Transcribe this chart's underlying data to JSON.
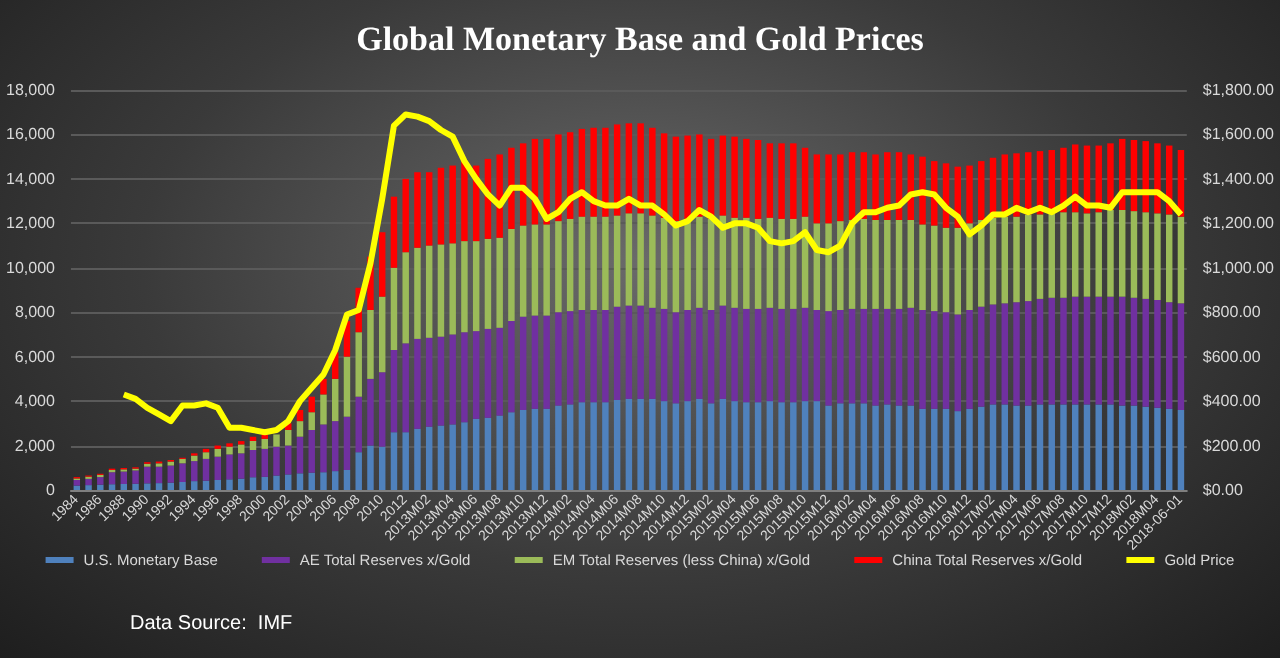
{
  "chart_data": {
    "type": "bar",
    "title": "Global Monetary Base and Gold Prices",
    "categories": [
      "1984",
      null,
      "1986",
      null,
      "1988",
      null,
      "1990",
      null,
      "1992",
      null,
      "1994",
      null,
      "1996",
      null,
      "1998",
      null,
      "2000",
      null,
      "2002",
      null,
      "2004",
      null,
      "2006",
      null,
      "2008",
      null,
      "2010",
      null,
      "2012",
      null,
      "2013M02",
      null,
      "2013M04",
      null,
      "2013M06",
      null,
      "2013M08",
      null,
      "2013M10",
      null,
      "2013M12",
      null,
      "2014M02",
      null,
      "2014M04",
      null,
      "2014M06",
      null,
      "2014M08",
      null,
      "2014M10",
      null,
      "2014M12",
      null,
      "2015M02",
      null,
      "2015M04",
      null,
      "2015M06",
      null,
      "2015M08",
      null,
      "2015M10",
      null,
      "2015M12",
      null,
      "2016M02",
      null,
      "2016M04",
      null,
      "2016M06",
      null,
      "2016M08",
      null,
      "2016M10",
      null,
      "2016M12",
      null,
      "2017M02",
      null,
      "2017M04",
      null,
      "2017M06",
      null,
      "2017M08",
      null,
      "2017M10",
      null,
      "2017M12",
      null,
      "2018M02",
      null,
      "2018M04",
      null,
      "2018-06-01"
    ],
    "stacked": true,
    "series": [
      {
        "name": "U.S. Monetary Base",
        "color": "#4f81bd",
        "values": [
          200,
          220,
          240,
          260,
          270,
          280,
          300,
          310,
          330,
          360,
          400,
          420,
          450,
          480,
          510,
          570,
          590,
          650,
          700,
          750,
          780,
          800,
          850,
          900,
          1700,
          2000,
          1950,
          2600,
          2600,
          2750,
          2850,
          2900,
          2950,
          3050,
          3200,
          3250,
          3350,
          3500,
          3600,
          3650,
          3650,
          3800,
          3850,
          3950,
          3950,
          3950,
          4050,
          4100,
          4100,
          4100,
          4000,
          3900,
          4000,
          4100,
          3900,
          4100,
          4000,
          3950,
          3950,
          4000,
          3950,
          3950,
          4000,
          4000,
          3800,
          3900,
          3900,
          3900,
          3800,
          3850,
          3800,
          3800,
          3650,
          3650,
          3650,
          3550,
          3650,
          3750,
          3850,
          3850,
          3800,
          3800,
          3850,
          3850,
          3850,
          3850,
          3850,
          3850,
          3850,
          3800,
          3800,
          3750,
          3700,
          3650,
          3600
        ]
      },
      {
        "name": "AE Total Reserves x/Gold",
        "color": "#7030a0",
        "values": [
          250,
          280,
          340,
          540,
          560,
          600,
          750,
          740,
          770,
          840,
          900,
          980,
          1050,
          1120,
          1140,
          1230,
          1260,
          1300,
          1300,
          1650,
          1920,
          2150,
          2250,
          2400,
          2500,
          3000,
          3350,
          3700,
          4000,
          4050,
          4000,
          4000,
          4050,
          4050,
          3950,
          4000,
          3950,
          4100,
          4200,
          4200,
          4200,
          4200,
          4200,
          4150,
          4150,
          4150,
          4200,
          4200,
          4200,
          4100,
          4150,
          4100,
          4100,
          4100,
          4200,
          4200,
          4200,
          4200,
          4200,
          4200,
          4200,
          4200,
          4200,
          4100,
          4250,
          4200,
          4250,
          4250,
          4350,
          4300,
          4350,
          4400,
          4450,
          4400,
          4350,
          4350,
          4450,
          4500,
          4500,
          4550,
          4650,
          4700,
          4750,
          4800,
          4800,
          4850,
          4850,
          4850,
          4850,
          4900,
          4850,
          4850,
          4850,
          4800,
          4800
        ]
      },
      {
        "name": "EM Total Reserves (less China) x/Gold",
        "color": "#9bbb59",
        "values": [
          70,
          100,
          100,
          100,
          100,
          80,
          130,
          150,
          180,
          200,
          250,
          300,
          350,
          350,
          400,
          400,
          450,
          550,
          700,
          700,
          800,
          1350,
          1900,
          2700,
          2900,
          3100,
          3400,
          3700,
          4100,
          4100,
          4150,
          4150,
          4100,
          4100,
          4050,
          4050,
          4050,
          4150,
          4100,
          4100,
          4100,
          4100,
          4150,
          4200,
          4200,
          4200,
          4100,
          4150,
          4150,
          4150,
          4100,
          4100,
          4100,
          4100,
          4100,
          4050,
          4050,
          4100,
          4050,
          4050,
          4050,
          4050,
          4100,
          3900,
          3950,
          4000,
          4000,
          4050,
          4000,
          4000,
          4000,
          3950,
          3850,
          3850,
          3800,
          3900,
          3900,
          3900,
          3900,
          3900,
          3850,
          3900,
          3800,
          3800,
          3850,
          3800,
          3750,
          3800,
          3900,
          3900,
          3900,
          3900,
          3900,
          3950,
          3900
        ]
      },
      {
        "name": "China Total Reserves x/Gold",
        "color": "#ff0000",
        "values": [
          60,
          50,
          50,
          60,
          60,
          60,
          70,
          80,
          70,
          50,
          100,
          150,
          150,
          150,
          150,
          200,
          200,
          null,
          300,
          500,
          700,
          700,
          1200,
          1600,
          2000,
          2400,
          2900,
          3200,
          3300,
          3400,
          3300,
          3450,
          3500,
          3600,
          3400,
          3600,
          3750,
          3650,
          3700,
          3850,
          3850,
          3900,
          3900,
          3950,
          4000,
          4000,
          4100,
          4050,
          4050,
          3950,
          3800,
          3800,
          3750,
          3700,
          3600,
          3600,
          3650,
          3550,
          3550,
          3350,
          3400,
          3400,
          3100,
          3100,
          3100,
          3000,
          3050,
          3000,
          2950,
          3050,
          3050,
          2950,
          3050,
          2900,
          2900,
          2750,
          2600,
          2650,
          2700,
          2800,
          2850,
          2800,
          2850,
          2850,
          2900,
          3050,
          3050,
          3000,
          3000,
          3200,
          3200,
          3200,
          3150,
          3100,
          3000
        ]
      },
      {
        "name": "Gold Price",
        "type": "line",
        "axis": "y2",
        "color": "#ffff00",
        "values": [
          null,
          null,
          null,
          null,
          430,
          410,
          370,
          340,
          310,
          380,
          380,
          390,
          370,
          280,
          280,
          270,
          260,
          270,
          310,
          400,
          460,
          520,
          630,
          790,
          810,
          1020,
          1310,
          1640,
          1690,
          1680,
          1660,
          1620,
          1590,
          1480,
          1400,
          1330,
          1280,
          1360,
          1360,
          1310,
          1220,
          1250,
          1310,
          1340,
          1300,
          1280,
          1280,
          1310,
          1280,
          1280,
          1240,
          1190,
          1210,
          1260,
          1230,
          1180,
          1200,
          1200,
          1180,
          1120,
          1110,
          1120,
          1160,
          1080,
          1070,
          1100,
          1200,
          1250,
          1250,
          1270,
          1280,
          1330,
          1340,
          1330,
          1270,
          1230,
          1150,
          1190,
          1240,
          1240,
          1270,
          1250,
          1270,
          1250,
          1280,
          1320,
          1280,
          1280,
          1270,
          1340,
          1340,
          1340,
          1340,
          1300,
          1240
        ]
      }
    ],
    "ylim": [
      0,
      18000
    ],
    "yticks": [
      {
        "value": 0,
        "label": "0"
      },
      {
        "value": 2000,
        "label": "2,000"
      },
      {
        "value": 4000,
        "label": "4,000"
      },
      {
        "value": 6000,
        "label": "6,000"
      },
      {
        "value": 8000,
        "label": "8,000"
      },
      {
        "value": 10000,
        "label": "10,000"
      },
      {
        "value": 12000,
        "label": "12,000"
      },
      {
        "value": 14000,
        "label": "14,000"
      },
      {
        "value": 16000,
        "label": "16,000"
      },
      {
        "value": 18000,
        "label": "18,000"
      }
    ],
    "y2lim": [
      0,
      1800
    ],
    "y2ticks": [
      {
        "value": 0,
        "label": "$0.00"
      },
      {
        "value": 200,
        "label": "$200.00"
      },
      {
        "value": 400,
        "label": "$400.00"
      },
      {
        "value": 600,
        "label": "$600.00"
      },
      {
        "value": 800,
        "label": "$800.00"
      },
      {
        "value": 1000,
        "label": "$1,000.00"
      },
      {
        "value": 1200,
        "label": "$1,200.00"
      },
      {
        "value": 1400,
        "label": "$1,400.00"
      },
      {
        "value": 1600,
        "label": "$1,600.00"
      },
      {
        "value": 1800,
        "label": "$1,800.00"
      }
    ],
    "grid": "y",
    "legend": "bottom",
    "marker": "none",
    "annotations": [
      "Data Source:  IMF"
    ]
  }
}
